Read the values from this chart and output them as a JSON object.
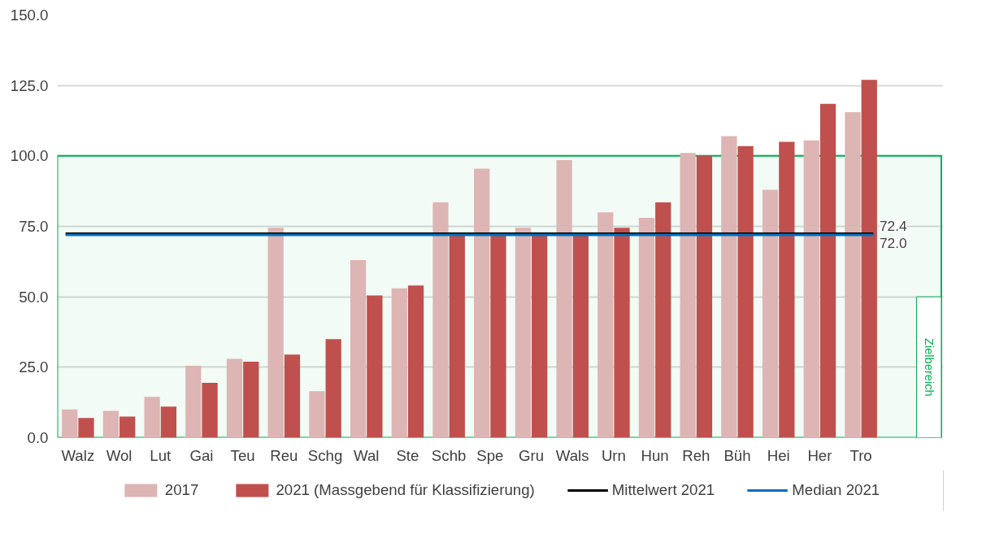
{
  "chart_data": {
    "type": "bar",
    "categories": [
      "Walz",
      "Wol",
      "Lut",
      "Gai",
      "Teu",
      "Reu",
      "Schg",
      "Wal",
      "Ste",
      "Schb",
      "Spe",
      "Gru",
      "Wals",
      "Urn",
      "Hun",
      "Reh",
      "Büh",
      "Hei",
      "Her",
      "Tro"
    ],
    "series": [
      {
        "name": "2017",
        "color": "#ddb5b4",
        "values": [
          10,
          9.5,
          14.5,
          25.5,
          28,
          74.5,
          16.5,
          63,
          53,
          83.5,
          95.5,
          74.5,
          98.5,
          80,
          78,
          101,
          107,
          88,
          105.5,
          115.5
        ]
      },
      {
        "name": "2021 (Massgebend für Klassifizierung)",
        "color": "#c0504d",
        "values": [
          7,
          7.5,
          11,
          19.5,
          27,
          29.5,
          35,
          50.5,
          54,
          72,
          72,
          72,
          72,
          74.5,
          83.5,
          100,
          103.5,
          105,
          118.5,
          127
        ]
      }
    ],
    "ylim": [
      0,
      150
    ],
    "yticks": [
      {
        "value": 0,
        "label": "0.0"
      },
      {
        "value": 25,
        "label": "25.0"
      },
      {
        "value": 50,
        "label": "50.0"
      },
      {
        "value": 75,
        "label": "75.0"
      },
      {
        "value": 100,
        "label": "100.0"
      },
      {
        "value": 125,
        "label": "125.0"
      },
      {
        "value": 150,
        "label": "150.0"
      }
    ],
    "grid": "y",
    "legend": "bottom",
    "ref_lines": [
      {
        "axis": "y",
        "value": 72.4,
        "label": "Mittelwert 2021",
        "color": "#000000"
      },
      {
        "axis": "y",
        "value": 72.0,
        "label": "Median 2021",
        "color": "#0070c0"
      }
    ],
    "bands": [
      {
        "axis": "y",
        "from": 0,
        "to": 100,
        "label": "Zielbereich",
        "color": "#00b050"
      }
    ],
    "annotations": [
      {
        "text": "72.4",
        "x": "Tro",
        "y": 72.4
      },
      {
        "text": "72.0",
        "x": "Tro",
        "y": 72.0
      }
    ]
  }
}
